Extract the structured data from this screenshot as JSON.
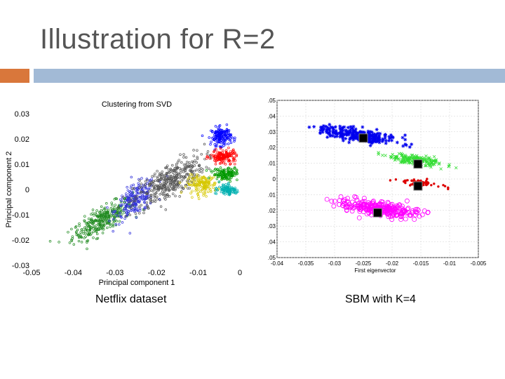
{
  "slide": {
    "title": "Illustration for R=2",
    "caption_left": "Netflix dataset",
    "caption_right": "SBM with K=4"
  },
  "colors": {
    "accent": "#d9773b",
    "bar": "#a2bad6"
  },
  "chart_data": [
    {
      "type": "scatter",
      "title": "Clustering from SVD",
      "xlabel": "Principal component 1",
      "ylabel": "Principal component 2",
      "xlim": [
        -0.05,
        0
      ],
      "ylim": [
        -0.03,
        0.03
      ],
      "xticks": [
        "-0.05",
        "-0.04",
        "-0.03",
        "-0.02",
        "-0.01",
        "0"
      ],
      "yticks": [
        "0.03",
        "0.02",
        "0.01",
        "0",
        "-0.01",
        "-0.02",
        "-0.03"
      ],
      "grid": false,
      "series": [
        {
          "color": "#228b22",
          "center": [
            -0.033,
            -0.012
          ],
          "spread": [
            0.006,
            0.004
          ],
          "count": 320
        },
        {
          "color": "#3333dd",
          "center": [
            -0.025,
            -0.004
          ],
          "spread": [
            0.004,
            0.005
          ],
          "count": 220
        },
        {
          "color": "#555555",
          "center": [
            -0.017,
            0.003
          ],
          "spread": [
            0.007,
            0.006
          ],
          "count": 380
        },
        {
          "color": "#d6c800",
          "center": [
            -0.009,
            0.002
          ],
          "spread": [
            0.003,
            0.003
          ],
          "count": 150
        },
        {
          "color": "#0000ff",
          "center": [
            -0.0045,
            0.021
          ],
          "spread": [
            0.002,
            0.003
          ],
          "count": 160
        },
        {
          "color": "#ff0000",
          "center": [
            -0.004,
            0.013
          ],
          "spread": [
            0.0025,
            0.002
          ],
          "count": 150
        },
        {
          "color": "#009900",
          "center": [
            -0.0035,
            0.006
          ],
          "spread": [
            0.0025,
            0.002
          ],
          "count": 120
        },
        {
          "color": "#00b0b0",
          "center": [
            -0.003,
            0.0
          ],
          "spread": [
            0.0022,
            0.0018
          ],
          "count": 110
        }
      ]
    },
    {
      "type": "scatter",
      "title": "",
      "xlabel": "First eigenvector",
      "ylabel": "",
      "xlim": [
        -0.04,
        -0.005
      ],
      "ylim": [
        -0.05,
        0.05
      ],
      "xticks": [
        "-0.04",
        "-0.035",
        "-0.03",
        "-0.025",
        "-0.02",
        "-0.015",
        "-0.01",
        "-0.005"
      ],
      "yticks": [
        ".05",
        ".04",
        ".03",
        ".02",
        ".01",
        "0",
        ".01",
        ".02",
        ".03",
        ".04",
        ".05"
      ],
      "grid": true,
      "series": [
        {
          "color": "#0000ee",
          "marker": "star",
          "center": [
            -0.026,
            0.028
          ],
          "spread": [
            0.0055,
            0.006
          ],
          "count": 260
        },
        {
          "color": "#33dd33",
          "marker": "cross",
          "center": [
            -0.016,
            0.012
          ],
          "spread": [
            0.004,
            0.0045
          ],
          "count": 180
        },
        {
          "color": "#dd0000",
          "marker": "dot",
          "center": [
            -0.0155,
            -0.0025
          ],
          "spread": [
            0.003,
            0.0025
          ],
          "count": 55
        },
        {
          "color": "#ff00ff",
          "marker": "circle",
          "center": [
            -0.022,
            -0.019
          ],
          "spread": [
            0.0055,
            0.0065
          ],
          "count": 280
        }
      ],
      "centroids": [
        [
          -0.025,
          0.026
        ],
        [
          -0.0155,
          0.0095
        ],
        [
          -0.0155,
          -0.0045
        ],
        [
          -0.0225,
          -0.0215
        ]
      ]
    }
  ]
}
